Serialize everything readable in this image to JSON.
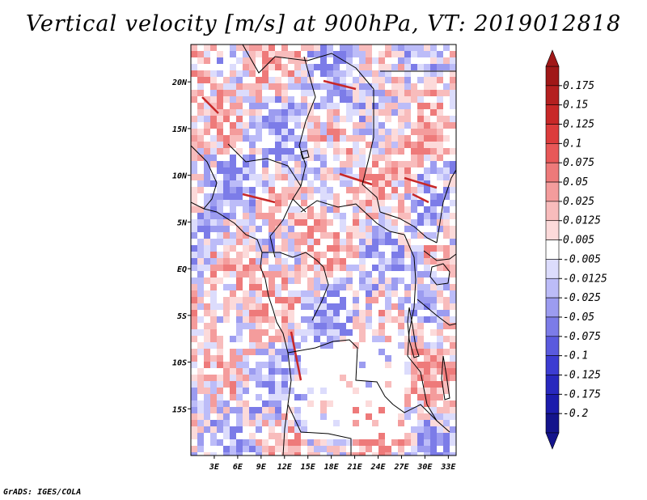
{
  "chart_data": {
    "type": "heatmap",
    "title": "Vertical velocity [m/s] at 900hPa, VT: 2019012818",
    "variable": "Vertical velocity",
    "units": "m/s",
    "level": "900hPa",
    "valid_time": "2019012818",
    "xlim": [
      0,
      34
    ],
    "ylim": [
      -20,
      24
    ],
    "x_ticks": [
      {
        "value": 3,
        "label": "3E"
      },
      {
        "value": 6,
        "label": "6E"
      },
      {
        "value": 9,
        "label": "9E"
      },
      {
        "value": 12,
        "label": "12E"
      },
      {
        "value": 15,
        "label": "15E"
      },
      {
        "value": 18,
        "label": "18E"
      },
      {
        "value": 21,
        "label": "21E"
      },
      {
        "value": 24,
        "label": "24E"
      },
      {
        "value": 27,
        "label": "27E"
      },
      {
        "value": 30,
        "label": "30E"
      },
      {
        "value": 33,
        "label": "33E"
      }
    ],
    "y_ticks": [
      {
        "value": 20,
        "label": "20N"
      },
      {
        "value": 15,
        "label": "15N"
      },
      {
        "value": 10,
        "label": "10N"
      },
      {
        "value": 5,
        "label": "5N"
      },
      {
        "value": 0,
        "label": "EQ"
      },
      {
        "value": -5,
        "label": "5S"
      },
      {
        "value": -10,
        "label": "10S"
      },
      {
        "value": -15,
        "label": "15S"
      }
    ],
    "colorbar_levels": [
      {
        "label": "0.175",
        "color": "#a01818"
      },
      {
        "label": "0.15",
        "color": "#b42020"
      },
      {
        "label": "0.125",
        "color": "#c82828"
      },
      {
        "label": "0.1",
        "color": "#dc3c3c"
      },
      {
        "label": "0.075",
        "color": "#e85858"
      },
      {
        "label": "0.05",
        "color": "#ee7a7a"
      },
      {
        "label": "0.025",
        "color": "#f49c9c"
      },
      {
        "label": "0.0125",
        "color": "#f8bcbc"
      },
      {
        "label": "0.005",
        "color": "#fcdada"
      },
      {
        "label": "-0.005",
        "color": "#ffffff"
      },
      {
        "label": "-0.0125",
        "color": "#dcdcfc"
      },
      {
        "label": "-0.025",
        "color": "#bcbcf8"
      },
      {
        "label": "-0.05",
        "color": "#9c9cf0"
      },
      {
        "label": "-0.075",
        "color": "#7c7ce8"
      },
      {
        "label": "-0.1",
        "color": "#5a5ade"
      },
      {
        "label": "-0.125",
        "color": "#3c3cd2"
      },
      {
        "label": "-0.175",
        "color": "#2828be"
      },
      {
        "label": "-0.2",
        "color": "#1c1cac"
      },
      {
        "label": "",
        "color": "#14148c"
      }
    ],
    "colorbar_max_color": "#a01818",
    "colorbar_min_color": "#14148c"
  },
  "footer": "GrADS: IGES/COLA"
}
